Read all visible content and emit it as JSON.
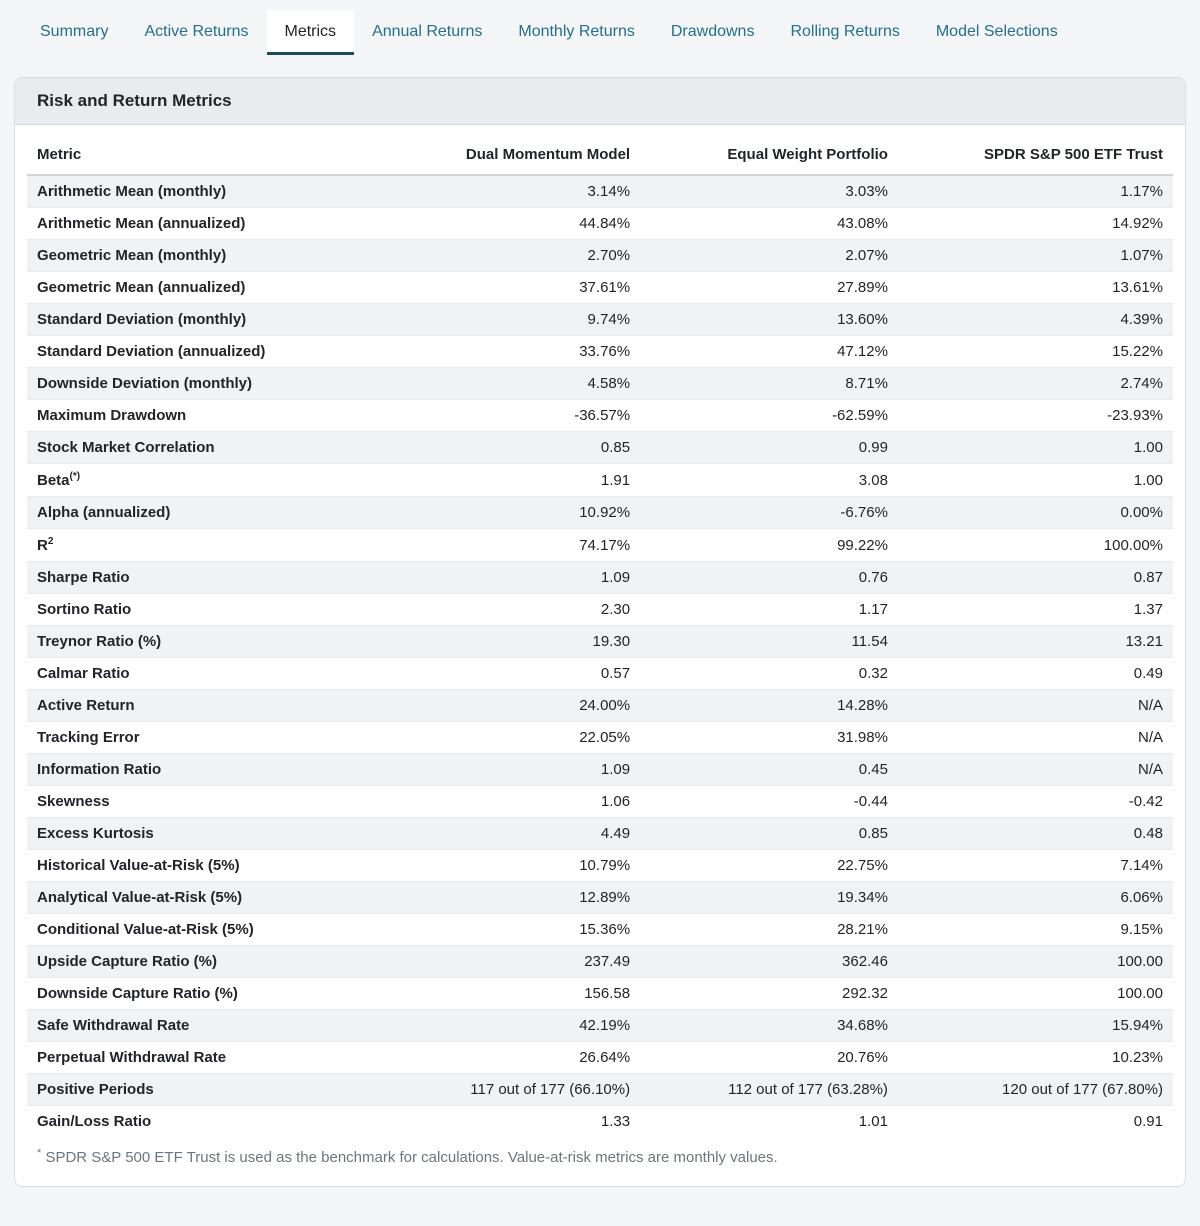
{
  "tabs": [
    {
      "label": "Summary",
      "active": false
    },
    {
      "label": "Active Returns",
      "active": false
    },
    {
      "label": "Metrics",
      "active": true
    },
    {
      "label": "Annual Returns",
      "active": false
    },
    {
      "label": "Monthly Returns",
      "active": false
    },
    {
      "label": "Drawdowns",
      "active": false
    },
    {
      "label": "Rolling Returns",
      "active": false
    },
    {
      "label": "Model Selections",
      "active": false
    }
  ],
  "card": {
    "title": "Risk and Return Metrics"
  },
  "table": {
    "columns": [
      "Metric",
      "Dual Momentum Model",
      "Equal Weight Portfolio",
      "SPDR S&P 500 ETF Trust"
    ],
    "rows": [
      {
        "metric": "Arithmetic Mean (monthly)",
        "values": [
          "3.14%",
          "3.03%",
          "1.17%"
        ]
      },
      {
        "metric": "Arithmetic Mean (annualized)",
        "values": [
          "44.84%",
          "43.08%",
          "14.92%"
        ]
      },
      {
        "metric": "Geometric Mean (monthly)",
        "values": [
          "2.70%",
          "2.07%",
          "1.07%"
        ]
      },
      {
        "metric": "Geometric Mean (annualized)",
        "values": [
          "37.61%",
          "27.89%",
          "13.61%"
        ]
      },
      {
        "metric": "Standard Deviation (monthly)",
        "values": [
          "9.74%",
          "13.60%",
          "4.39%"
        ]
      },
      {
        "metric": "Standard Deviation (annualized)",
        "values": [
          "33.76%",
          "47.12%",
          "15.22%"
        ]
      },
      {
        "metric": "Downside Deviation (monthly)",
        "values": [
          "4.58%",
          "8.71%",
          "2.74%"
        ]
      },
      {
        "metric": "Maximum Drawdown",
        "values": [
          "-36.57%",
          "-62.59%",
          "-23.93%"
        ]
      },
      {
        "metric": "Stock Market Correlation",
        "values": [
          "0.85",
          "0.99",
          "1.00"
        ]
      },
      {
        "metric": "Beta",
        "sup": "(*)",
        "values": [
          "1.91",
          "3.08",
          "1.00"
        ]
      },
      {
        "metric": "Alpha (annualized)",
        "values": [
          "10.92%",
          "-6.76%",
          "0.00%"
        ]
      },
      {
        "metric": "R",
        "sup": "2",
        "values": [
          "74.17%",
          "99.22%",
          "100.00%"
        ]
      },
      {
        "metric": "Sharpe Ratio",
        "values": [
          "1.09",
          "0.76",
          "0.87"
        ]
      },
      {
        "metric": "Sortino Ratio",
        "values": [
          "2.30",
          "1.17",
          "1.37"
        ]
      },
      {
        "metric": "Treynor Ratio (%)",
        "values": [
          "19.30",
          "11.54",
          "13.21"
        ]
      },
      {
        "metric": "Calmar Ratio",
        "values": [
          "0.57",
          "0.32",
          "0.49"
        ]
      },
      {
        "metric": "Active Return",
        "values": [
          "24.00%",
          "14.28%",
          "N/A"
        ]
      },
      {
        "metric": "Tracking Error",
        "values": [
          "22.05%",
          "31.98%",
          "N/A"
        ]
      },
      {
        "metric": "Information Ratio",
        "values": [
          "1.09",
          "0.45",
          "N/A"
        ]
      },
      {
        "metric": "Skewness",
        "values": [
          "1.06",
          "-0.44",
          "-0.42"
        ]
      },
      {
        "metric": "Excess Kurtosis",
        "values": [
          "4.49",
          "0.85",
          "0.48"
        ]
      },
      {
        "metric": "Historical Value-at-Risk (5%)",
        "values": [
          "10.79%",
          "22.75%",
          "7.14%"
        ]
      },
      {
        "metric": "Analytical Value-at-Risk (5%)",
        "values": [
          "12.89%",
          "19.34%",
          "6.06%"
        ]
      },
      {
        "metric": "Conditional Value-at-Risk (5%)",
        "values": [
          "15.36%",
          "28.21%",
          "9.15%"
        ]
      },
      {
        "metric": "Upside Capture Ratio (%)",
        "values": [
          "237.49",
          "362.46",
          "100.00"
        ]
      },
      {
        "metric": "Downside Capture Ratio (%)",
        "values": [
          "156.58",
          "292.32",
          "100.00"
        ]
      },
      {
        "metric": "Safe Withdrawal Rate",
        "values": [
          "42.19%",
          "34.68%",
          "15.94%"
        ]
      },
      {
        "metric": "Perpetual Withdrawal Rate",
        "values": [
          "26.64%",
          "20.76%",
          "10.23%"
        ]
      },
      {
        "metric": "Positive Periods",
        "values": [
          "117 out of 177 (66.10%)",
          "112 out of 177 (63.28%)",
          "120 out of 177 (67.80%)"
        ]
      },
      {
        "metric": "Gain/Loss Ratio",
        "values": [
          "1.33",
          "1.01",
          "0.91"
        ]
      }
    ]
  },
  "footnote": {
    "marker": "*",
    "text": "SPDR S&P 500 ETF Trust is used as the benchmark for calculations. Value-at-risk metrics are monthly values."
  },
  "colors": {
    "tab_link": "#24708e",
    "active_underline": "#1d4a5c",
    "card_header_bg": "#e9ecef",
    "stripe": "#f1f2f4",
    "page_bg": "#f4f5f6",
    "text": "#212529",
    "muted": "#6c757d"
  }
}
